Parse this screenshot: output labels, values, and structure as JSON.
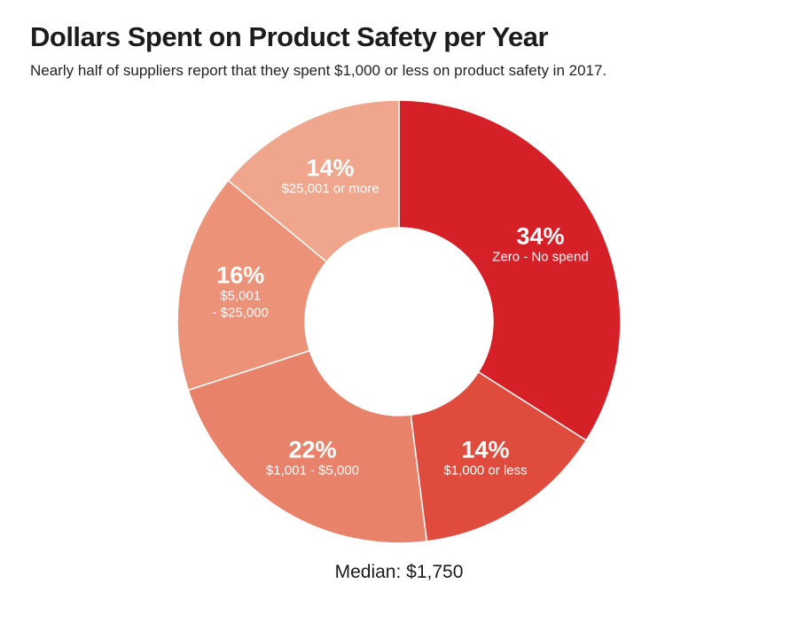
{
  "chart_data": {
    "type": "pie",
    "title": "Dollars Spent on Product Safety per Year",
    "subtitle": "Nearly half of suppliers report that they spent $1,000 or less on product safety in 2017.",
    "slices": [
      {
        "label": "Zero - No spend",
        "label_lines": [
          "Zero - No spend"
        ],
        "value": 34,
        "value_label": "34%",
        "color": "#d62027"
      },
      {
        "label": "$1,000 or less",
        "label_lines": [
          "$1,000 or less"
        ],
        "value": 14,
        "value_label": "14%",
        "color": "#df4b3c"
      },
      {
        "label": "$1,001 - $5,000",
        "label_lines": [
          "$1,001 - $5,000"
        ],
        "value": 22,
        "value_label": "22%",
        "color": "#e9826b"
      },
      {
        "label": "$5,001 - $25,000",
        "label_lines": [
          "$5,001",
          "- $25,000"
        ],
        "value": 16,
        "value_label": "16%",
        "color": "#ec9278"
      },
      {
        "label": "$25,001 or more",
        "label_lines": [
          "$25,001 or more"
        ],
        "value": 14,
        "value_label": "14%",
        "color": "#efa68c"
      }
    ],
    "annotation": "Median: $1,750"
  }
}
